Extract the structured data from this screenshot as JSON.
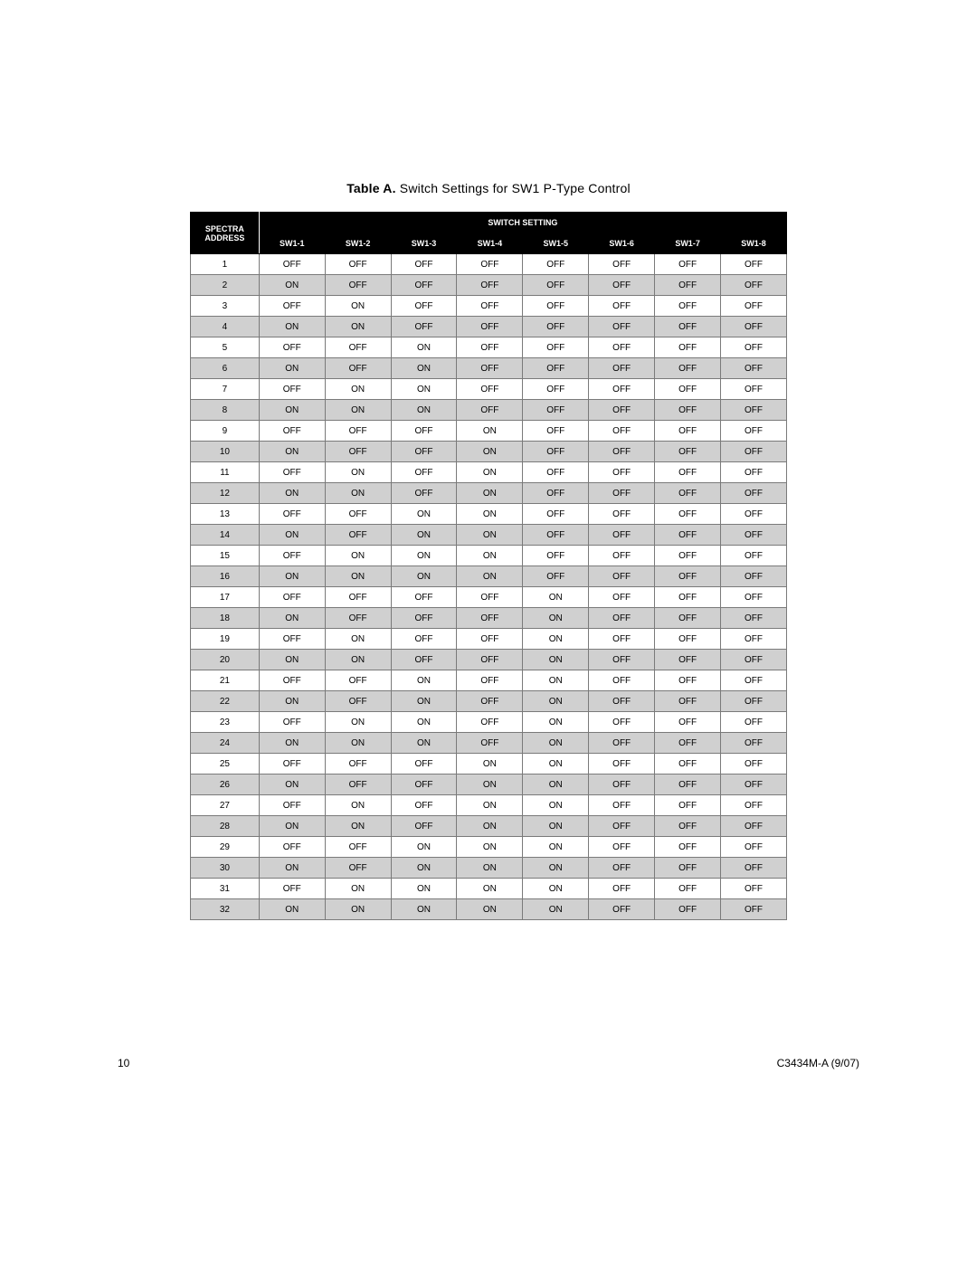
{
  "caption": {
    "label": "Table A.",
    "title": "Switch Settings for SW1 P-Type Control"
  },
  "table": {
    "header": {
      "top_left_line1": "SPECTRA",
      "top_left_line2": "ADDRESS",
      "top_right": "SWITCH SETTING",
      "columns": [
        "SW1-1",
        "SW1-2",
        "SW1-3",
        "SW1-4",
        "SW1-5",
        "SW1-6",
        "SW1-7",
        "SW1-8"
      ]
    },
    "rows": [
      {
        "addr": "1",
        "cells": [
          "OFF",
          "OFF",
          "OFF",
          "OFF",
          "OFF",
          "OFF",
          "OFF",
          "OFF"
        ]
      },
      {
        "addr": "2",
        "cells": [
          "ON",
          "OFF",
          "OFF",
          "OFF",
          "OFF",
          "OFF",
          "OFF",
          "OFF"
        ]
      },
      {
        "addr": "3",
        "cells": [
          "OFF",
          "ON",
          "OFF",
          "OFF",
          "OFF",
          "OFF",
          "OFF",
          "OFF"
        ]
      },
      {
        "addr": "4",
        "cells": [
          "ON",
          "ON",
          "OFF",
          "OFF",
          "OFF",
          "OFF",
          "OFF",
          "OFF"
        ]
      },
      {
        "addr": "5",
        "cells": [
          "OFF",
          "OFF",
          "ON",
          "OFF",
          "OFF",
          "OFF",
          "OFF",
          "OFF"
        ]
      },
      {
        "addr": "6",
        "cells": [
          "ON",
          "OFF",
          "ON",
          "OFF",
          "OFF",
          "OFF",
          "OFF",
          "OFF"
        ]
      },
      {
        "addr": "7",
        "cells": [
          "OFF",
          "ON",
          "ON",
          "OFF",
          "OFF",
          "OFF",
          "OFF",
          "OFF"
        ]
      },
      {
        "addr": "8",
        "cells": [
          "ON",
          "ON",
          "ON",
          "OFF",
          "OFF",
          "OFF",
          "OFF",
          "OFF"
        ]
      },
      {
        "addr": "9",
        "cells": [
          "OFF",
          "OFF",
          "OFF",
          "ON",
          "OFF",
          "OFF",
          "OFF",
          "OFF"
        ]
      },
      {
        "addr": "10",
        "cells": [
          "ON",
          "OFF",
          "OFF",
          "ON",
          "OFF",
          "OFF",
          "OFF",
          "OFF"
        ]
      },
      {
        "addr": "11",
        "cells": [
          "OFF",
          "ON",
          "OFF",
          "ON",
          "OFF",
          "OFF",
          "OFF",
          "OFF"
        ]
      },
      {
        "addr": "12",
        "cells": [
          "ON",
          "ON",
          "OFF",
          "ON",
          "OFF",
          "OFF",
          "OFF",
          "OFF"
        ]
      },
      {
        "addr": "13",
        "cells": [
          "OFF",
          "OFF",
          "ON",
          "ON",
          "OFF",
          "OFF",
          "OFF",
          "OFF"
        ]
      },
      {
        "addr": "14",
        "cells": [
          "ON",
          "OFF",
          "ON",
          "ON",
          "OFF",
          "OFF",
          "OFF",
          "OFF"
        ]
      },
      {
        "addr": "15",
        "cells": [
          "OFF",
          "ON",
          "ON",
          "ON",
          "OFF",
          "OFF",
          "OFF",
          "OFF"
        ]
      },
      {
        "addr": "16",
        "cells": [
          "ON",
          "ON",
          "ON",
          "ON",
          "OFF",
          "OFF",
          "OFF",
          "OFF"
        ]
      },
      {
        "addr": "17",
        "cells": [
          "OFF",
          "OFF",
          "OFF",
          "OFF",
          "ON",
          "OFF",
          "OFF",
          "OFF"
        ]
      },
      {
        "addr": "18",
        "cells": [
          "ON",
          "OFF",
          "OFF",
          "OFF",
          "ON",
          "OFF",
          "OFF",
          "OFF"
        ]
      },
      {
        "addr": "19",
        "cells": [
          "OFF",
          "ON",
          "OFF",
          "OFF",
          "ON",
          "OFF",
          "OFF",
          "OFF"
        ]
      },
      {
        "addr": "20",
        "cells": [
          "ON",
          "ON",
          "OFF",
          "OFF",
          "ON",
          "OFF",
          "OFF",
          "OFF"
        ]
      },
      {
        "addr": "21",
        "cells": [
          "OFF",
          "OFF",
          "ON",
          "OFF",
          "ON",
          "OFF",
          "OFF",
          "OFF"
        ]
      },
      {
        "addr": "22",
        "cells": [
          "ON",
          "OFF",
          "ON",
          "OFF",
          "ON",
          "OFF",
          "OFF",
          "OFF"
        ]
      },
      {
        "addr": "23",
        "cells": [
          "OFF",
          "ON",
          "ON",
          "OFF",
          "ON",
          "OFF",
          "OFF",
          "OFF"
        ]
      },
      {
        "addr": "24",
        "cells": [
          "ON",
          "ON",
          "ON",
          "OFF",
          "ON",
          "OFF",
          "OFF",
          "OFF"
        ]
      },
      {
        "addr": "25",
        "cells": [
          "OFF",
          "OFF",
          "OFF",
          "ON",
          "ON",
          "OFF",
          "OFF",
          "OFF"
        ]
      },
      {
        "addr": "26",
        "cells": [
          "ON",
          "OFF",
          "OFF",
          "ON",
          "ON",
          "OFF",
          "OFF",
          "OFF"
        ]
      },
      {
        "addr": "27",
        "cells": [
          "OFF",
          "ON",
          "OFF",
          "ON",
          "ON",
          "OFF",
          "OFF",
          "OFF"
        ]
      },
      {
        "addr": "28",
        "cells": [
          "ON",
          "ON",
          "OFF",
          "ON",
          "ON",
          "OFF",
          "OFF",
          "OFF"
        ]
      },
      {
        "addr": "29",
        "cells": [
          "OFF",
          "OFF",
          "ON",
          "ON",
          "ON",
          "OFF",
          "OFF",
          "OFF"
        ]
      },
      {
        "addr": "30",
        "cells": [
          "ON",
          "OFF",
          "ON",
          "ON",
          "ON",
          "OFF",
          "OFF",
          "OFF"
        ]
      },
      {
        "addr": "31",
        "cells": [
          "OFF",
          "ON",
          "ON",
          "ON",
          "ON",
          "OFF",
          "OFF",
          "OFF"
        ]
      },
      {
        "addr": "32",
        "cells": [
          "ON",
          "ON",
          "ON",
          "ON",
          "ON",
          "OFF",
          "OFF",
          "OFF"
        ]
      }
    ],
    "row_colors": {
      "odd_bg": "#ffffff",
      "even_bg": "#d0d0d0"
    },
    "border_color": "#7a7a7a",
    "header_bg": "#000000",
    "header_fg": "#ffffff"
  },
  "footer": {
    "page_number": "10",
    "doc_id": "C3434M-A (9/07)"
  }
}
